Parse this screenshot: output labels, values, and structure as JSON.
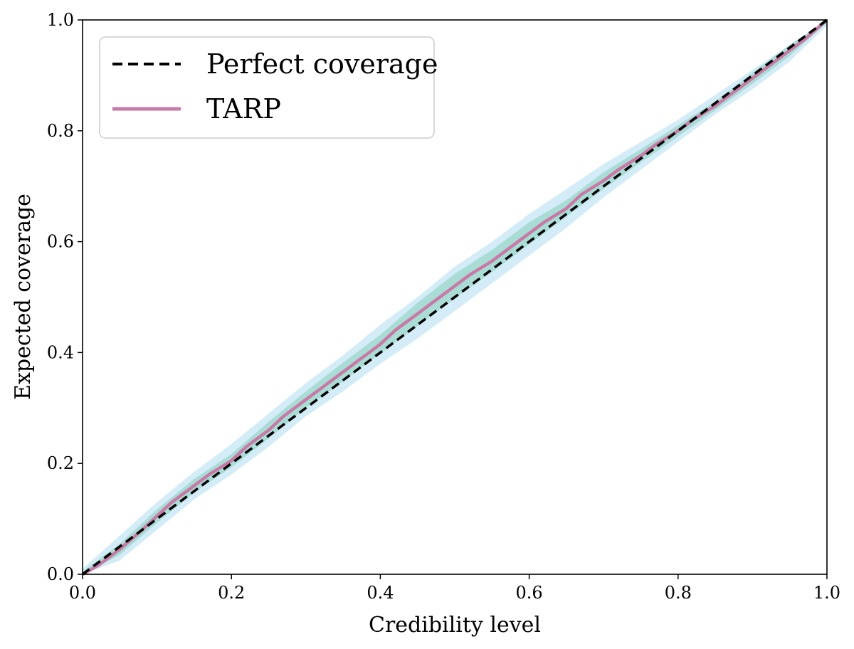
{
  "chart_data": {
    "type": "line",
    "title": "",
    "xlabel": "Credibility level",
    "ylabel": "Expected coverage",
    "xlim": [
      0,
      1
    ],
    "ylim": [
      0,
      1
    ],
    "xticks": [
      "0.0",
      "0.2",
      "0.4",
      "0.6",
      "0.8",
      "1.0"
    ],
    "yticks": [
      "0.0",
      "0.2",
      "0.4",
      "0.6",
      "0.8",
      "1.0"
    ],
    "grid": false,
    "legend_position": "top-left",
    "series": [
      {
        "name": "Perfect coverage",
        "style": "dashed",
        "color": "#000000",
        "x": [
          0.0,
          1.0
        ],
        "y": [
          0.0,
          1.0
        ]
      },
      {
        "name": "TARP",
        "style": "solid",
        "color": "#c77aa6",
        "x": [
          0.0,
          0.02,
          0.05,
          0.08,
          0.1,
          0.12,
          0.15,
          0.17,
          0.2,
          0.22,
          0.25,
          0.27,
          0.3,
          0.32,
          0.35,
          0.37,
          0.4,
          0.42,
          0.45,
          0.47,
          0.5,
          0.52,
          0.55,
          0.57,
          0.6,
          0.62,
          0.65,
          0.67,
          0.7,
          0.72,
          0.75,
          0.77,
          0.8,
          0.82,
          0.85,
          0.87,
          0.9,
          0.92,
          0.95,
          0.97,
          1.0
        ],
        "y": [
          0.0,
          0.015,
          0.045,
          0.08,
          0.105,
          0.13,
          0.16,
          0.18,
          0.205,
          0.23,
          0.26,
          0.285,
          0.315,
          0.335,
          0.365,
          0.385,
          0.415,
          0.44,
          0.47,
          0.49,
          0.52,
          0.54,
          0.565,
          0.585,
          0.615,
          0.635,
          0.66,
          0.685,
          0.71,
          0.73,
          0.755,
          0.775,
          0.8,
          0.82,
          0.845,
          0.865,
          0.895,
          0.915,
          0.945,
          0.965,
          1.0
        ]
      }
    ],
    "bands": [
      {
        "level": "outer",
        "color": "#d3ecf8",
        "x": [
          0.0,
          0.05,
          0.1,
          0.15,
          0.2,
          0.25,
          0.3,
          0.35,
          0.4,
          0.45,
          0.5,
          0.55,
          0.6,
          0.65,
          0.7,
          0.75,
          0.8,
          0.85,
          0.9,
          0.95,
          1.0
        ],
        "lower": [
          0.0,
          0.025,
          0.08,
          0.135,
          0.18,
          0.23,
          0.285,
          0.33,
          0.38,
          0.425,
          0.475,
          0.525,
          0.575,
          0.625,
          0.68,
          0.73,
          0.78,
          0.83,
          0.875,
          0.925,
          0.99
        ],
        "upper": [
          0.01,
          0.07,
          0.13,
          0.185,
          0.235,
          0.29,
          0.345,
          0.395,
          0.45,
          0.5,
          0.555,
          0.6,
          0.65,
          0.695,
          0.74,
          0.78,
          0.82,
          0.865,
          0.91,
          0.955,
          1.0
        ]
      },
      {
        "level": "inner",
        "color": "#aadcd6",
        "x": [
          0.0,
          0.05,
          0.1,
          0.15,
          0.2,
          0.25,
          0.3,
          0.35,
          0.4,
          0.45,
          0.5,
          0.55,
          0.6,
          0.65,
          0.7,
          0.75,
          0.8,
          0.85,
          0.9,
          0.95,
          1.0
        ],
        "lower": [
          0.0,
          0.035,
          0.093,
          0.148,
          0.193,
          0.245,
          0.3,
          0.348,
          0.398,
          0.448,
          0.498,
          0.545,
          0.595,
          0.645,
          0.695,
          0.743,
          0.79,
          0.837,
          0.885,
          0.935,
          0.995
        ],
        "upper": [
          0.005,
          0.055,
          0.117,
          0.172,
          0.217,
          0.275,
          0.33,
          0.382,
          0.432,
          0.49,
          0.542,
          0.585,
          0.635,
          0.675,
          0.725,
          0.767,
          0.81,
          0.853,
          0.905,
          0.955,
          1.0
        ]
      }
    ]
  }
}
